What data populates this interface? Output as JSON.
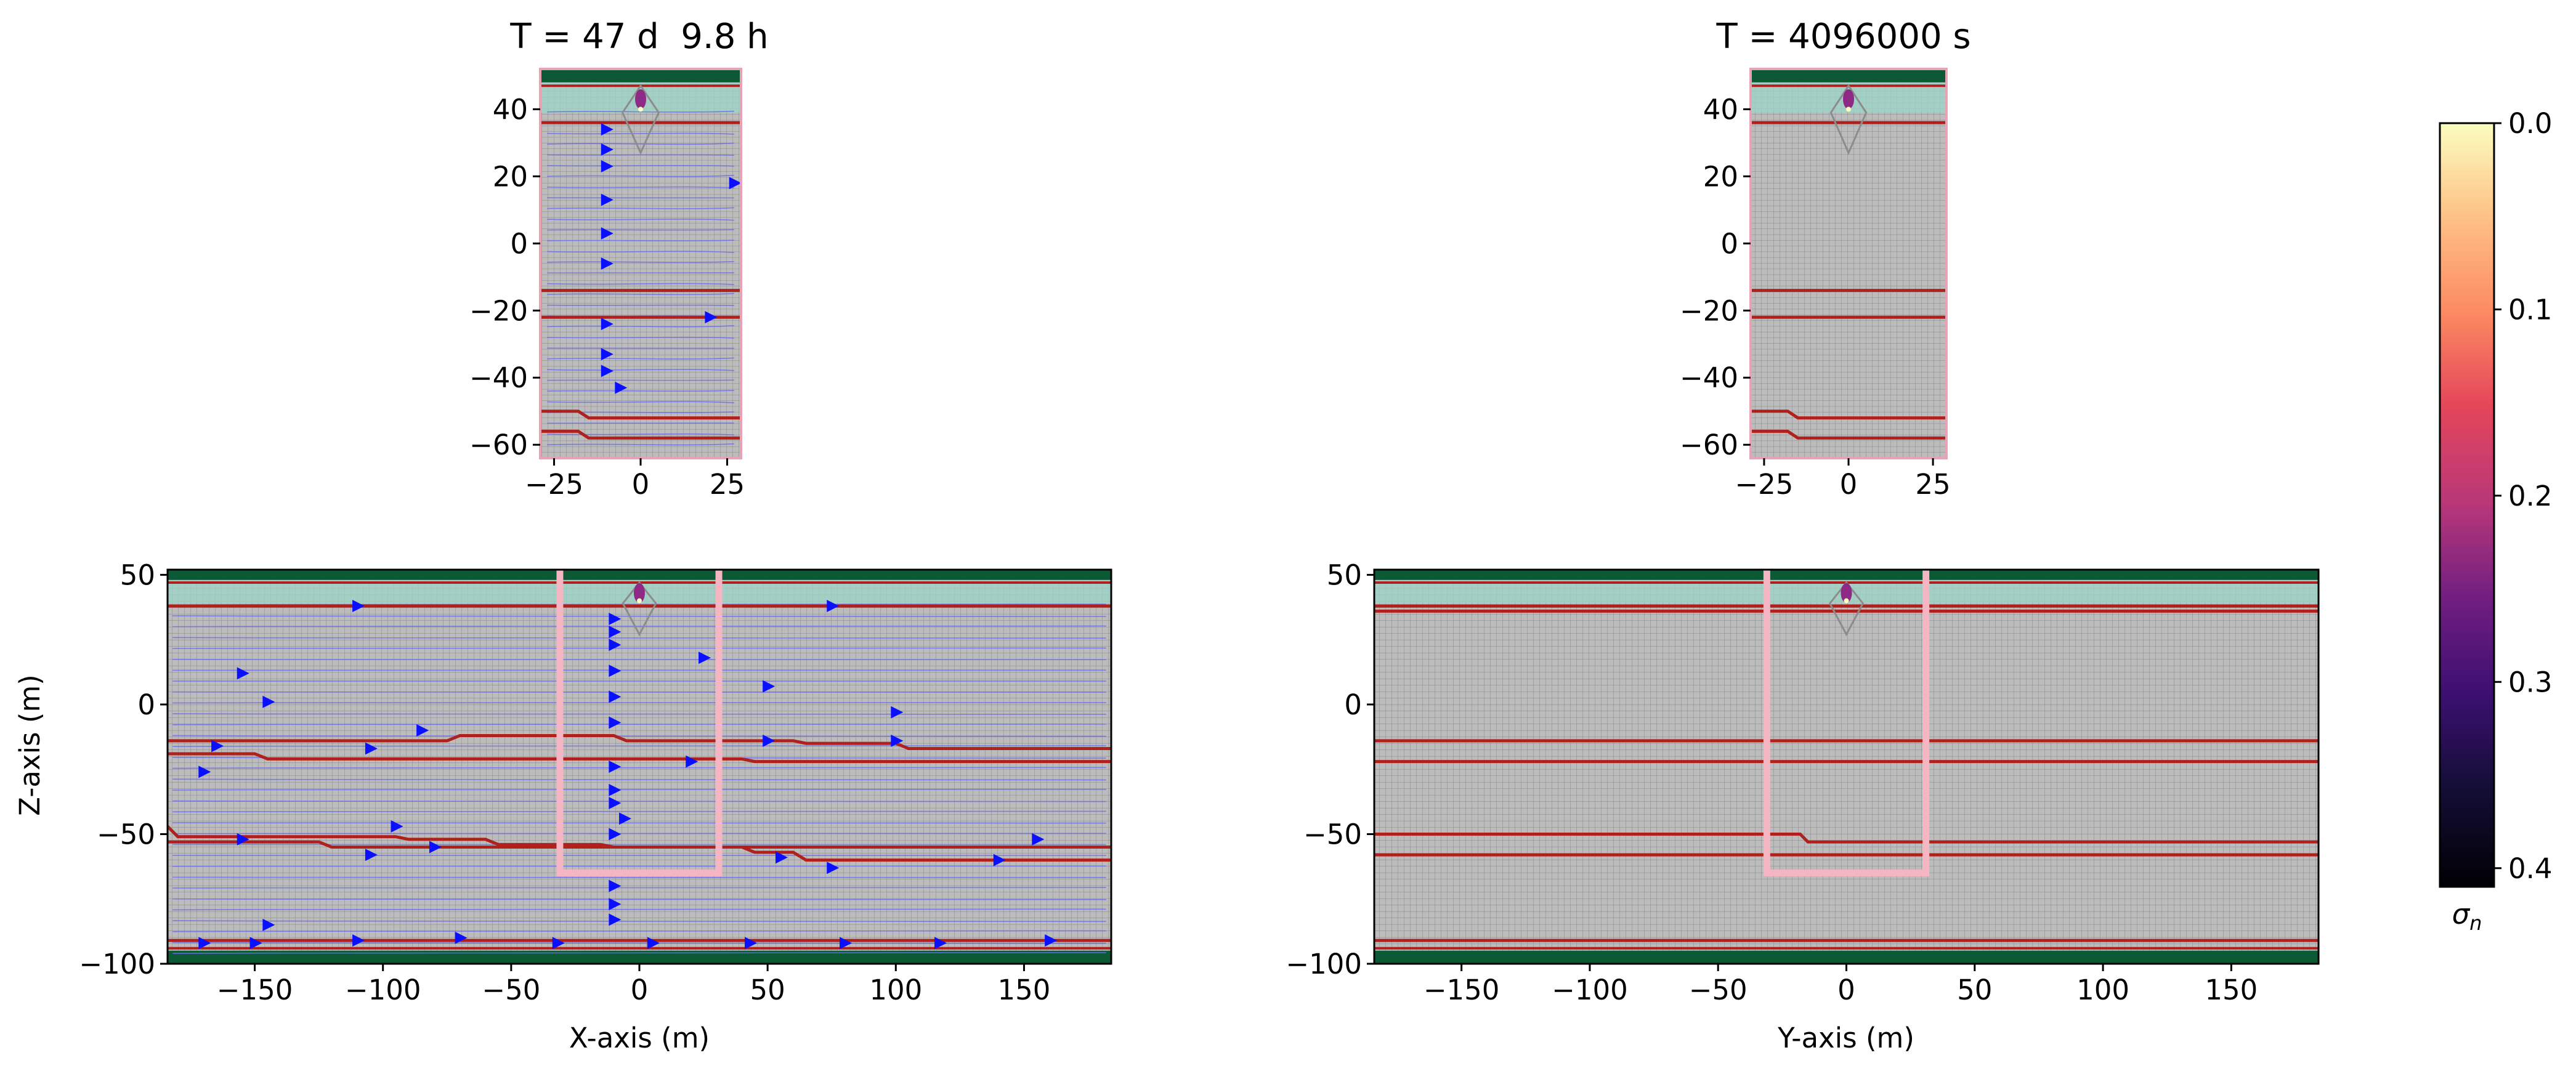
{
  "figure": {
    "title_left": "T = 47 d  9.8 h",
    "title_right": "T = 4096000 s"
  },
  "chart_data": [
    {
      "type": "heatmap",
      "panel": "top-left",
      "title": "T = 47 d  9.8 h",
      "xlabel": "",
      "ylabel": "",
      "xlim": [
        -29,
        29
      ],
      "ylim": [
        -64,
        52
      ],
      "xticks": [
        -25,
        0,
        25
      ],
      "yticks": [
        -60,
        -40,
        -20,
        0,
        20,
        40
      ],
      "grid": true,
      "layers_z": [
        36,
        -14,
        -22
      ],
      "stepped_layers": [
        {
          "x_step": -18,
          "z_left": -50,
          "z_right": -52
        },
        {
          "x_step": -18,
          "z_left": -56,
          "z_right": -58
        }
      ],
      "flow_arrows": [
        [
          -10,
          34
        ],
        [
          -10,
          28
        ],
        [
          -10,
          23
        ],
        [
          -10,
          13
        ],
        [
          -10,
          3
        ],
        [
          -10,
          -6
        ],
        [
          -10,
          -24
        ],
        [
          -10,
          -33
        ],
        [
          -10,
          -38
        ],
        [
          -6,
          -43
        ],
        [
          20,
          -22
        ],
        [
          27,
          18
        ]
      ]
    },
    {
      "type": "heatmap",
      "panel": "top-right",
      "title": "T = 4096000 s",
      "xlabel": "",
      "ylabel": "",
      "xlim": [
        -29,
        29
      ],
      "ylim": [
        -64,
        52
      ],
      "xticks": [
        -25,
        0,
        25
      ],
      "yticks": [
        -60,
        -40,
        -20,
        0,
        20,
        40
      ],
      "grid": true,
      "layers_z": [
        36,
        -14,
        -22
      ],
      "stepped_layers": [
        {
          "x_step": -18,
          "z_left": -50,
          "z_right": -52
        },
        {
          "x_step": -18,
          "z_left": -56,
          "z_right": -58
        }
      ],
      "flow_arrows": []
    },
    {
      "type": "heatmap",
      "panel": "bottom-left",
      "xlabel": "X-axis (m)",
      "ylabel": "Z-axis (m)",
      "xlim": [
        -184,
        184
      ],
      "ylim": [
        -100,
        52
      ],
      "xticks": [
        -150,
        -100,
        -50,
        0,
        50,
        100,
        150
      ],
      "yticks": [
        -100,
        -50,
        0,
        50
      ],
      "grid": true,
      "layers_z": [
        38
      ],
      "wavy_layers": [
        {
          "points": [
            [
              -184,
              -14
            ],
            [
              -75,
              -14
            ],
            [
              -70,
              -12
            ],
            [
              -10,
              -12
            ],
            [
              -5,
              -14
            ],
            [
              60,
              -14
            ],
            [
              65,
              -15
            ],
            [
              100,
              -15
            ],
            [
              105,
              -17
            ],
            [
              184,
              -17
            ]
          ]
        },
        {
          "points": [
            [
              -184,
              -19
            ],
            [
              -150,
              -19
            ],
            [
              -145,
              -21
            ],
            [
              40,
              -21
            ],
            [
              45,
              -22
            ],
            [
              184,
              -22
            ]
          ]
        },
        {
          "points": [
            [
              -184,
              -47
            ],
            [
              -180,
              -51
            ],
            [
              -95,
              -51
            ],
            [
              -90,
              -52
            ],
            [
              -60,
              -52
            ],
            [
              -55,
              -54
            ],
            [
              -15,
              -54
            ],
            [
              -10,
              -55
            ],
            [
              184,
              -55
            ]
          ]
        },
        {
          "points": [
            [
              -184,
              -53
            ],
            [
              -125,
              -53
            ],
            [
              -120,
              -55
            ],
            [
              40,
              -55
            ],
            [
              45,
              -57
            ],
            [
              60,
              -57
            ],
            [
              65,
              -60
            ],
            [
              184,
              -60
            ]
          ]
        }
      ],
      "well_box": {
        "x": [
          -31,
          31
        ],
        "z_bottom": -65
      },
      "flow_arrows": [
        [
          -110,
          38
        ],
        [
          75,
          38
        ],
        [
          -10,
          33
        ],
        [
          -10,
          28
        ],
        [
          -10,
          23
        ],
        [
          -10,
          13
        ],
        [
          -10,
          3
        ],
        [
          -10,
          -7
        ],
        [
          -155,
          12
        ],
        [
          -145,
          1
        ],
        [
          25,
          18
        ],
        [
          50,
          7
        ],
        [
          100,
          -3
        ],
        [
          -85,
          -10
        ],
        [
          -105,
          -17
        ],
        [
          -165,
          -16
        ],
        [
          -170,
          -26
        ],
        [
          -10,
          -24
        ],
        [
          20,
          -22
        ],
        [
          50,
          -14
        ],
        [
          100,
          -14
        ],
        [
          -10,
          -33
        ],
        [
          -10,
          -38
        ],
        [
          -6,
          -44
        ],
        [
          -95,
          -47
        ],
        [
          -155,
          -52
        ],
        [
          -80,
          -55
        ],
        [
          -105,
          -58
        ],
        [
          55,
          -59
        ],
        [
          -10,
          -50
        ],
        [
          75,
          -63
        ],
        [
          140,
          -60
        ],
        [
          155,
          -52
        ],
        [
          -10,
          -70
        ],
        [
          -10,
          -77
        ],
        [
          -10,
          -83
        ],
        [
          -145,
          -85
        ],
        [
          -170,
          -92
        ],
        [
          -150,
          -92
        ],
        [
          -110,
          -91
        ],
        [
          -70,
          -90
        ],
        [
          -32,
          -92
        ],
        [
          5,
          -92
        ],
        [
          43,
          -92
        ],
        [
          80,
          -92
        ],
        [
          117,
          -92
        ],
        [
          160,
          -91
        ]
      ]
    },
    {
      "type": "heatmap",
      "panel": "bottom-right",
      "xlabel": "Y-axis (m)",
      "ylabel": "",
      "xlim": [
        -184,
        184
      ],
      "ylim": [
        -100,
        52
      ],
      "xticks": [
        -150,
        -100,
        -50,
        0,
        50,
        100,
        150
      ],
      "yticks": [
        -100,
        -50,
        0,
        50
      ],
      "grid": true,
      "layers_z": [
        38,
        36,
        -14,
        -22
      ],
      "stepped_layers": [
        {
          "x_step": -18,
          "z_left": -50,
          "z_right": -53
        },
        {
          "x_step": -18,
          "z_left": -58,
          "z_right": -58
        }
      ],
      "well_box": {
        "x": [
          -31,
          31
        ],
        "z_bottom": -65
      },
      "flow_arrows": []
    }
  ],
  "colorbar": {
    "label": "σn",
    "ticks": [
      "0.0",
      "0.1",
      "0.2",
      "0.3",
      "0.4"
    ],
    "range": [
      0.0,
      0.41
    ],
    "colors": [
      "#fcfdbf",
      "#fec287",
      "#fc8961",
      "#e4465a",
      "#b73779",
      "#721f81",
      "#3b0f70",
      "#140e36",
      "#000004"
    ]
  },
  "colors": {
    "mesh": "#bcbcbc",
    "mesh_line": "#8f8f8f",
    "layer": "#b0201c",
    "top_band": "#0b5a35",
    "teal_band": "#9bd6c7",
    "arrow": "#0a10ff",
    "streamline": "#6d6df0",
    "well": "#f5b5c3"
  }
}
